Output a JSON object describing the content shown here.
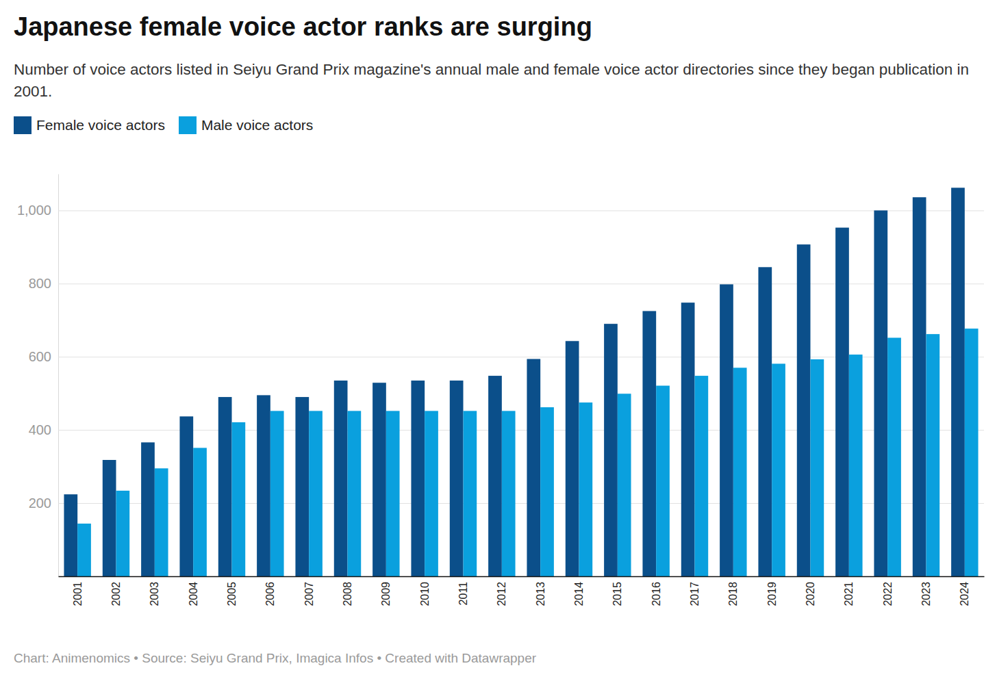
{
  "chart_data": {
    "type": "bar",
    "title": "Japanese female voice actor ranks are surging",
    "subtitle": "Number of voice actors listed in Seiyu Grand Prix magazine's annual male and female voice actor directories since they began publication in 2001.",
    "source": "Chart: Animenomics • Source: Seiyu Grand Prix, Imagica Infos • Created with Datawrapper",
    "categories": [
      "2001",
      "2002",
      "2003",
      "2004",
      "2005",
      "2006",
      "2007",
      "2008",
      "2009",
      "2010",
      "2011",
      "2012",
      "2013",
      "2014",
      "2015",
      "2016",
      "2017",
      "2018",
      "2019",
      "2020",
      "2021",
      "2022",
      "2023",
      "2024"
    ],
    "series": [
      {
        "name": "Female voice actors",
        "color": "#0b4f8a",
        "values": [
          224,
          318,
          366,
          437,
          490,
          495,
          490,
          535,
          529,
          535,
          535,
          548,
          594,
          643,
          690,
          725,
          748,
          798,
          845,
          907,
          953,
          1000,
          1036,
          1062
        ]
      },
      {
        "name": "Male voice actors",
        "color": "#0aa0de",
        "values": [
          144,
          234,
          295,
          351,
          421,
          452,
          452,
          452,
          452,
          452,
          452,
          452,
          462,
          475,
          499,
          521,
          548,
          570,
          581,
          593,
          606,
          652,
          662,
          677
        ]
      }
    ],
    "ylim": [
      0,
      1100
    ],
    "yticks": [
      200,
      400,
      600,
      800,
      {
        "value": 1000,
        "label": "1,000"
      }
    ],
    "grid": true,
    "legend": "top-left"
  }
}
